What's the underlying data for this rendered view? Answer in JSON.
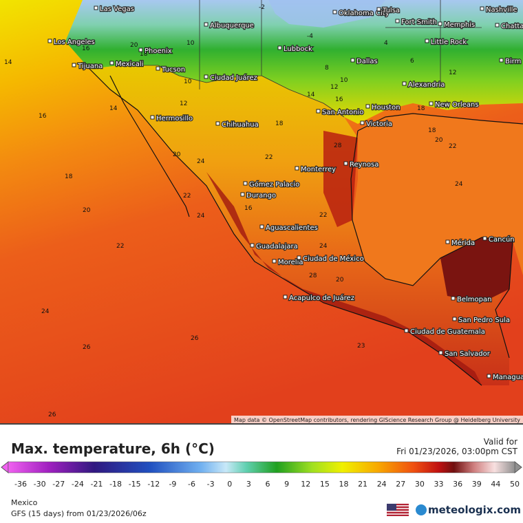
{
  "map": {
    "cities": [
      "Las Vegas",
      "Albuquerque",
      "Oklahoma City",
      "Tulsa",
      "Nashville",
      "Fort Smith",
      "Memphis",
      "Chatta",
      "Los Angeles",
      "Phoenix",
      "Little Rock",
      "Lubbock",
      "Mexicali",
      "Tijuana",
      "Tucson",
      "Dallas",
      "Birm",
      "Ciudad Juárez",
      "Alexandria",
      "Houston",
      "New Orleans",
      "San Antonio",
      "Hermosillo",
      "Chihuahua",
      "Victoria",
      "Monterrey",
      "Reynosa",
      "Gómez Palacio",
      "Durango",
      "Aguascalientes",
      "Mérida",
      "Cancún",
      "Guadalajara",
      "Ciudad de México",
      "Morelia",
      "Acapulco de Juárez",
      "Belmopan",
      "San Pedro Sula",
      "Ciudad de Guatemala",
      "San Salvador",
      "Managua"
    ],
    "contour_labels": [
      14,
      16,
      18,
      20,
      22,
      24,
      26,
      26,
      26,
      16,
      20,
      18,
      10,
      10,
      12,
      14,
      20,
      24,
      22,
      24,
      18,
      22,
      16,
      22,
      24,
      28,
      12,
      14,
      16,
      18,
      18,
      20,
      22,
      24,
      28,
      20,
      23,
      -2,
      -4,
      4,
      6,
      8,
      10,
      12
    ],
    "attribution": "Map data © OpenStreetMap contributors, rendering GIScience Research Group @ Heidelberg University"
  },
  "legend": {
    "title": "Max. temperature, 6h (°C)",
    "ticks": [
      -36,
      -30,
      -27,
      -24,
      -21,
      -18,
      -15,
      -12,
      -9,
      -6,
      -3,
      0,
      3,
      6,
      9,
      12,
      15,
      18,
      21,
      24,
      27,
      30,
      33,
      36,
      39,
      44,
      50
    ]
  },
  "valid": {
    "label": "Valid for",
    "time": "Fri 01/23/2026, 03:00pm CST"
  },
  "footer": {
    "region": "Mexico",
    "model": "GFS (15 days) from 01/23/2026/06z",
    "brand": "meteologix.com"
  }
}
